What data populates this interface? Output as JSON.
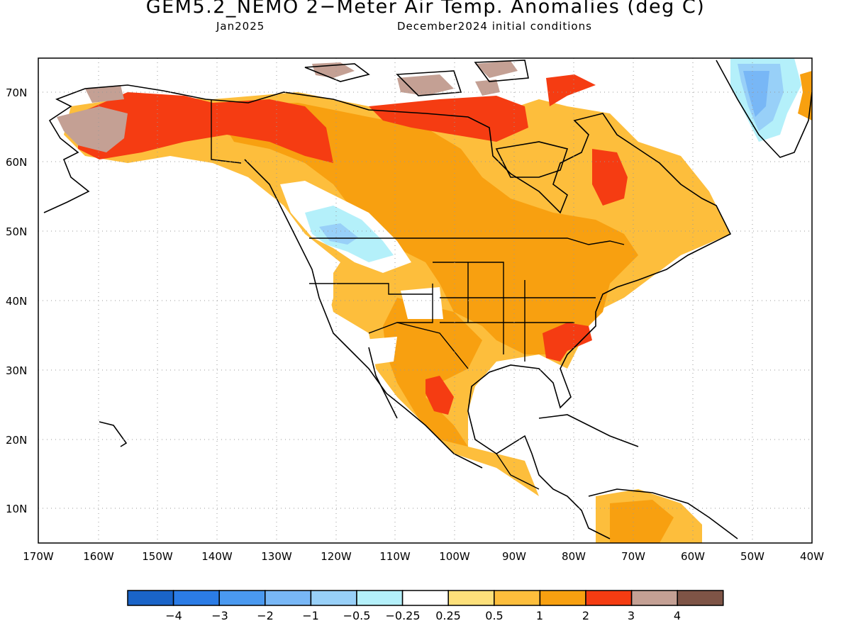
{
  "title": "GEM5.2_NEMO 2−Meter Air Temp. Anomalies (deg C)",
  "subtitle_left": "Jan2025",
  "subtitle_right": "December2024 initial conditions",
  "lat_ticks": [
    "10N",
    "20N",
    "30N",
    "40N",
    "50N",
    "60N",
    "70N"
  ],
  "lon_ticks": [
    "170W",
    "160W",
    "150W",
    "140W",
    "130W",
    "120W",
    "110W",
    "100W",
    "90W",
    "80W",
    "70W",
    "60W",
    "50W",
    "40W"
  ],
  "colorbar": {
    "colors": [
      "#1a64c8",
      "#2b7ce6",
      "#4a99f0",
      "#78b7f6",
      "#98d0f8",
      "#b4f0fa",
      "#ffffff",
      "#fde07a",
      "#fdbe3c",
      "#f8a010",
      "#f53c12",
      "#c4a094",
      "#7e5446"
    ],
    "labels": [
      "−4",
      "−3",
      "−2",
      "−1",
      "−0.5",
      "−0.25",
      "0.25",
      "0.5",
      "1",
      "2",
      "3",
      "4"
    ]
  }
}
